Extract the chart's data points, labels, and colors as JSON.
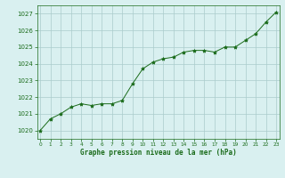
{
  "x": [
    0,
    1,
    2,
    3,
    4,
    5,
    6,
    7,
    8,
    9,
    10,
    11,
    12,
    13,
    14,
    15,
    16,
    17,
    18,
    19,
    20,
    21,
    22,
    23
  ],
  "y": [
    1020.0,
    1020.7,
    1021.0,
    1021.4,
    1021.6,
    1021.5,
    1021.6,
    1021.6,
    1021.8,
    1022.8,
    1023.7,
    1024.1,
    1024.3,
    1024.4,
    1024.7,
    1024.8,
    1024.8,
    1024.7,
    1025.0,
    1025.0,
    1025.4,
    1025.8,
    1026.5,
    1027.1
  ],
  "ylim": [
    1019.5,
    1027.5
  ],
  "yticks": [
    1020,
    1021,
    1022,
    1023,
    1024,
    1025,
    1026,
    1027
  ],
  "xticks": [
    0,
    1,
    2,
    3,
    4,
    5,
    6,
    7,
    8,
    9,
    10,
    11,
    12,
    13,
    14,
    15,
    16,
    17,
    18,
    19,
    20,
    21,
    22,
    23
  ],
  "xlabel": "Graphe pression niveau de la mer (hPa)",
  "line_color": "#1a6b1a",
  "marker": "*",
  "marker_color": "#1a6b1a",
  "bg_color": "#d9f0f0",
  "grid_color": "#aacccc",
  "xlabel_color": "#1a6b1a",
  "tick_color": "#1a6b1a",
  "spine_color": "#1a6b1a"
}
